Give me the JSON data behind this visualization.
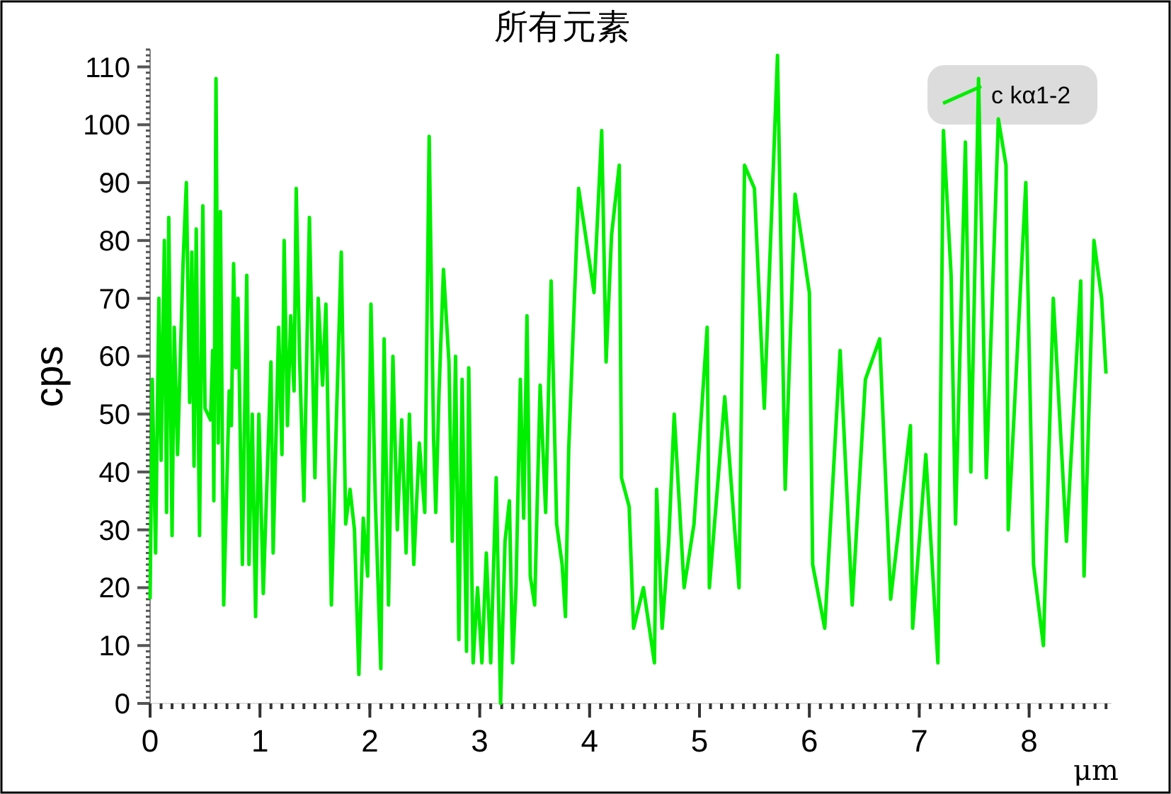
{
  "chart_data": {
    "type": "line",
    "title": "所有元素",
    "xlabel": "μm",
    "ylabel": "cps",
    "xlim": [
      0,
      8.75
    ],
    "ylim": [
      0,
      113
    ],
    "xticks": [
      0,
      1,
      2,
      3,
      4,
      5,
      6,
      7,
      8
    ],
    "yticks": [
      0,
      10,
      20,
      30,
      40,
      50,
      60,
      70,
      80,
      90,
      100,
      110
    ],
    "legend": "top right",
    "grid": false,
    "marker": "none",
    "line_style": "solid",
    "series": [
      {
        "name": "c kα1-2",
        "color": "#00ee00",
        "x": [
          0,
          0.02,
          0.05,
          0.08,
          0.1,
          0.13,
          0.15,
          0.17,
          0.2,
          0.22,
          0.25,
          0.3,
          0.33,
          0.36,
          0.38,
          0.4,
          0.42,
          0.45,
          0.48,
          0.5,
          0.55,
          0.57,
          0.58,
          0.6,
          0.62,
          0.64,
          0.67,
          0.72,
          0.74,
          0.76,
          0.78,
          0.8,
          0.84,
          0.88,
          0.9,
          0.93,
          0.96,
          0.99,
          1.03,
          1.1,
          1.12,
          1.17,
          1.2,
          1.22,
          1.25,
          1.28,
          1.31,
          1.33,
          1.36,
          1.4,
          1.45,
          1.5,
          1.53,
          1.57,
          1.6,
          1.65,
          1.7,
          1.74,
          1.78,
          1.82,
          1.86,
          1.9,
          1.94,
          1.98,
          2.01,
          2.05,
          2.1,
          2.13,
          2.17,
          2.21,
          2.25,
          2.29,
          2.33,
          2.36,
          2.4,
          2.45,
          2.5,
          2.54,
          2.58,
          2.6,
          2.63,
          2.67,
          2.72,
          2.75,
          2.78,
          2.81,
          2.84,
          2.88,
          2.9,
          2.94,
          2.98,
          3.02,
          3.06,
          3.1,
          3.15,
          3.19,
          3.23,
          3.27,
          3.3,
          3.33,
          3.37,
          3.4,
          3.43,
          3.46,
          3.5,
          3.55,
          3.6,
          3.65,
          3.7,
          3.75,
          3.78,
          3.81,
          3.9,
          4.04,
          4.11,
          4.15,
          4.2,
          4.27,
          4.29,
          4.36,
          4.4,
          4.49,
          4.59,
          4.61,
          4.66,
          4.72,
          4.77,
          4.86,
          4.95,
          5.07,
          5.09,
          5.23,
          5.36,
          5.41,
          5.5,
          5.59,
          5.71,
          5.78,
          5.87,
          6.0,
          6.03,
          6.14,
          6.28,
          6.39,
          6.51,
          6.64,
          6.74,
          6.92,
          6.94,
          7.06,
          7.17,
          7.22,
          7.29,
          7.33,
          7.42,
          7.47,
          7.54,
          7.61,
          7.72,
          7.79,
          7.81,
          7.97,
          8.04,
          8.13,
          8.22,
          8.34,
          8.47,
          8.5,
          8.59,
          8.66,
          8.7
        ],
        "values": [
          18,
          56,
          26,
          70,
          42,
          80,
          33,
          84,
          29,
          65,
          43,
          76,
          90,
          52,
          78,
          41,
          82,
          29,
          86,
          51,
          49,
          61,
          35,
          108,
          45,
          85,
          17,
          54,
          48,
          76,
          58,
          70,
          24,
          74,
          24,
          50,
          15,
          50,
          19,
          59,
          26,
          65,
          43,
          80,
          48,
          67,
          54,
          89,
          60,
          35,
          84,
          39,
          70,
          55,
          69,
          17,
          52,
          78,
          31,
          37,
          30,
          5,
          32,
          22,
          69,
          35,
          6,
          63,
          17,
          60,
          30,
          49,
          26,
          50,
          24,
          45,
          33,
          98,
          46,
          33,
          54,
          75,
          59,
          28,
          60,
          11,
          56,
          9,
          58,
          7,
          20,
          7,
          26,
          7,
          39,
          0,
          28,
          35,
          7,
          20,
          56,
          32,
          67,
          22,
          17,
          55,
          33,
          73,
          31,
          24,
          15,
          44,
          89,
          71,
          99,
          59,
          81,
          93,
          39,
          34,
          13,
          20,
          7,
          37,
          13,
          28,
          50,
          20,
          31,
          65,
          20,
          53,
          20,
          93,
          89,
          51,
          112,
          37,
          88,
          71,
          24,
          13,
          61,
          17,
          56,
          63,
          18,
          48,
          13,
          43,
          7,
          99,
          74,
          31,
          97,
          40,
          108,
          39,
          101,
          93,
          30,
          90,
          24,
          10,
          70,
          28,
          73,
          22,
          80,
          70,
          57
        ]
      }
    ]
  }
}
